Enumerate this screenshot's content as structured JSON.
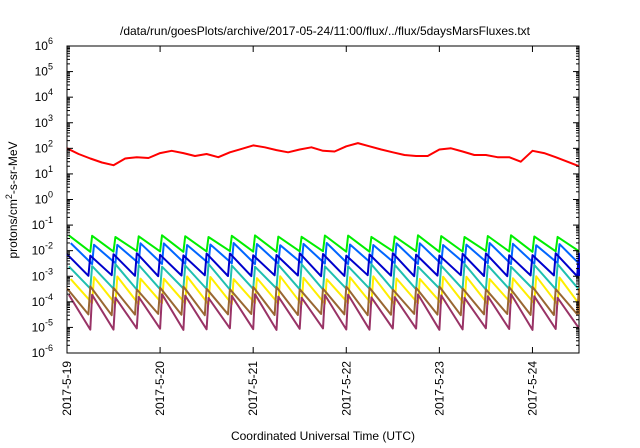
{
  "chart_data": {
    "type": "line",
    "title": "/data/run/goesPlots/archive/2017-05-24/11:00/flux/../flux/5daysMarsFluxes.txt",
    "xlabel": "Coordinated Universal Time (UTC)",
    "ylabel": "protons/cm2-s-sr-MeV",
    "ylabel_parts": {
      "base": "protons/cm",
      "sup": "2",
      "rest": "-s-sr-MeV"
    },
    "yscale": "log",
    "ylim": [
      "1e-6",
      "1e6"
    ],
    "y_ticks": [
      {
        "base": "10",
        "exp": "6"
      },
      {
        "base": "10",
        "exp": "5"
      },
      {
        "base": "10",
        "exp": "4"
      },
      {
        "base": "10",
        "exp": "3"
      },
      {
        "base": "10",
        "exp": "2"
      },
      {
        "base": "10",
        "exp": "1"
      },
      {
        "base": "10",
        "exp": "0"
      },
      {
        "base": "10",
        "exp": "-1"
      },
      {
        "base": "10",
        "exp": "-2"
      },
      {
        "base": "10",
        "exp": "-3"
      },
      {
        "base": "10",
        "exp": "-4"
      },
      {
        "base": "10",
        "exp": "-5"
      },
      {
        "base": "10",
        "exp": "-6"
      }
    ],
    "x_ticks": [
      "2017-5-19",
      "2017-5-20",
      "2017-5-21",
      "2017-5-22",
      "2017-5-23",
      "2017-5-24"
    ],
    "xlim": [
      "2017-05-19 00:00",
      "2017-05-24 12:00"
    ],
    "grid": false,
    "legend": "none",
    "series": [
      {
        "color": "#ff0000",
        "x": [
          "2017-05-19 00:00",
          "2017-05-19 03:00",
          "2017-05-19 06:00",
          "2017-05-19 09:00",
          "2017-05-19 12:00",
          "2017-05-19 15:00",
          "2017-05-19 18:00",
          "2017-05-19 21:00",
          "2017-05-20 00:00",
          "2017-05-20 03:00",
          "2017-05-20 06:00",
          "2017-05-20 09:00",
          "2017-05-20 12:00",
          "2017-05-20 15:00",
          "2017-05-20 18:00",
          "2017-05-20 21:00",
          "2017-05-21 00:00",
          "2017-05-21 03:00",
          "2017-05-21 06:00",
          "2017-05-21 09:00",
          "2017-05-21 12:00",
          "2017-05-21 15:00",
          "2017-05-21 18:00",
          "2017-05-21 21:00",
          "2017-05-22 00:00",
          "2017-05-22 03:00",
          "2017-05-22 06:00",
          "2017-05-22 09:00",
          "2017-05-22 12:00",
          "2017-05-22 15:00",
          "2017-05-22 18:00",
          "2017-05-22 21:00",
          "2017-05-23 00:00",
          "2017-05-23 03:00",
          "2017-05-23 06:00",
          "2017-05-23 09:00",
          "2017-05-23 12:00",
          "2017-05-23 15:00",
          "2017-05-23 18:00",
          "2017-05-23 21:00",
          "2017-05-24 00:00",
          "2017-05-24 03:00",
          "2017-05-24 06:00",
          "2017-05-24 09:00",
          "2017-05-24 12:00"
        ],
        "y": [
          100,
          60,
          40,
          28,
          22,
          40,
          45,
          42,
          65,
          80,
          65,
          50,
          60,
          45,
          70,
          95,
          130,
          110,
          85,
          70,
          90,
          110,
          80,
          75,
          120,
          160,
          120,
          90,
          70,
          55,
          50,
          50,
          90,
          100,
          75,
          55,
          55,
          45,
          45,
          30,
          80,
          65,
          45,
          30,
          20
        ]
      },
      {
        "color": "#00ee00",
        "x": [
          "2017-05-19 00:00",
          "2017-05-24 12:00"
        ],
        "y_range": [
          0.009,
          0.04
        ],
        "sawtooth_period_days": 0.25
      },
      {
        "color": "#0066ff",
        "x": [
          "2017-05-19 00:00",
          "2017-05-24 12:00"
        ],
        "y_range": [
          0.003,
          0.02
        ],
        "sawtooth_period_days": 0.25
      },
      {
        "color": "#0000cc",
        "x": [
          "2017-05-19 00:00",
          "2017-05-24 12:00"
        ],
        "y_range": [
          0.001,
          0.008
        ],
        "sawtooth_period_days": 0.25
      },
      {
        "color": "#20c0b0",
        "x": [
          "2017-05-19 00:00",
          "2017-05-24 12:00"
        ],
        "y_range": [
          0.0003,
          0.003
        ],
        "sawtooth_period_days": 0.25
      },
      {
        "color": "#ffee00",
        "x": [
          "2017-05-19 00:00",
          "2017-05-24 12:00"
        ],
        "y_range": [
          8e-05,
          0.001
        ],
        "sawtooth_period_days": 0.25
      },
      {
        "color": "#996633",
        "x": [
          "2017-05-19 00:00",
          "2017-05-24 12:00"
        ],
        "y_range": [
          3e-05,
          0.0004
        ],
        "sawtooth_period_days": 0.25
      },
      {
        "color": "#993366",
        "x": [
          "2017-05-19 00:00",
          "2017-05-24 12:00"
        ],
        "y_range": [
          8e-06,
          0.0002
        ],
        "sawtooth_period_days": 0.25
      }
    ]
  }
}
